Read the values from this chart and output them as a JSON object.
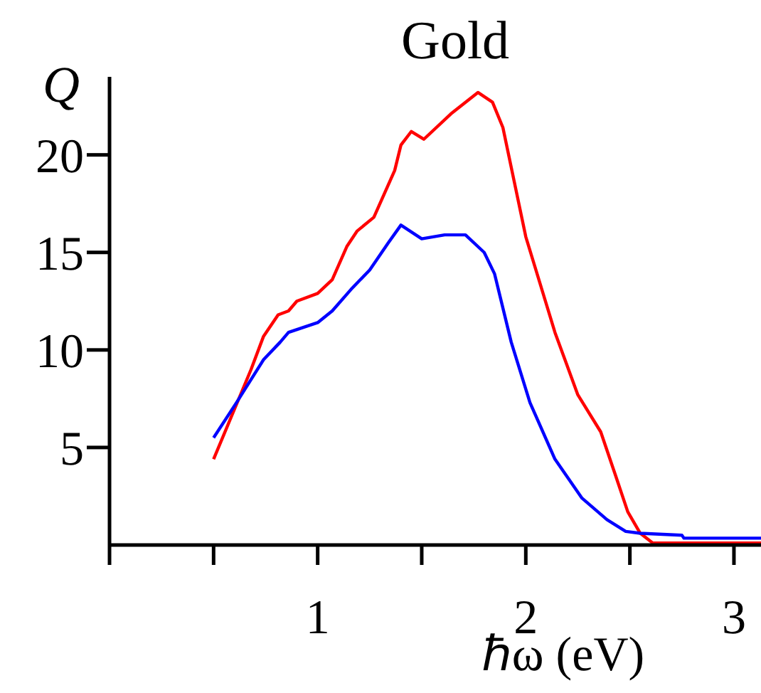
{
  "chart_data": {
    "type": "line",
    "title": "Gold",
    "xlabel": "ℏω (eV)",
    "ylabel": "Q",
    "xlim": [
      0,
      3.13
    ],
    "ylim": [
      0,
      24
    ],
    "xticks": [
      {
        "value": 0,
        "label": null
      },
      {
        "value": 0.5,
        "label": null
      },
      1,
      {
        "value": 1.5,
        "label": null
      },
      2,
      {
        "value": 2.5,
        "label": null
      },
      3
    ],
    "yticks": [
      5,
      10,
      15,
      20
    ],
    "grid": false,
    "legend": false,
    "marker": "none",
    "series": [
      {
        "color": "#ff0000",
        "x": [
          0.5,
          0.68,
          0.74,
          0.81,
          0.86,
          0.9,
          1.0,
          1.07,
          1.14,
          1.19,
          1.27,
          1.37,
          1.4,
          1.45,
          1.51,
          1.64,
          1.77,
          1.84,
          1.89,
          2.0,
          2.14,
          2.25,
          2.36,
          2.43,
          2.49,
          2.55,
          2.61,
          3.13
        ],
        "values": [
          4.4,
          9.0,
          10.7,
          11.8,
          12.0,
          12.5,
          12.9,
          13.6,
          15.3,
          16.1,
          16.8,
          19.2,
          20.5,
          21.2,
          20.8,
          22.1,
          23.2,
          22.7,
          21.4,
          15.8,
          10.9,
          7.7,
          5.8,
          3.6,
          1.7,
          0.6,
          0.1,
          0.1
        ]
      },
      {
        "color": "#0000ff",
        "x": [
          0.5,
          0.61,
          0.74,
          0.82,
          0.86,
          1.0,
          1.07,
          1.16,
          1.25,
          1.34,
          1.4,
          1.5,
          1.61,
          1.71,
          1.8,
          1.85,
          1.93,
          2.02,
          2.14,
          2.27,
          2.39,
          2.48,
          2.55,
          2.75,
          2.76,
          3.13
        ],
        "values": [
          5.5,
          7.3,
          9.5,
          10.4,
          10.9,
          11.4,
          12.0,
          13.1,
          14.1,
          15.5,
          16.4,
          15.7,
          15.9,
          15.9,
          15.0,
          13.9,
          10.4,
          7.3,
          4.4,
          2.4,
          1.3,
          0.7,
          0.6,
          0.5,
          0.35,
          0.35
        ]
      }
    ]
  }
}
